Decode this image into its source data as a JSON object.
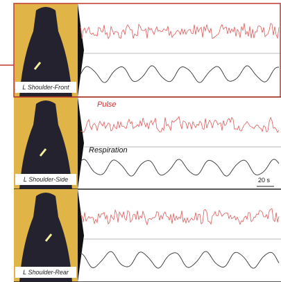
{
  "panels": [
    {
      "label": "L Shoulder-Front"
    },
    {
      "label": "L Shoulder-Side"
    },
    {
      "label": "L Shoulder-Rear"
    }
  ],
  "annotations": {
    "pulse": "Pulse",
    "respiration": "Respiration",
    "scale": "20 s"
  }
}
